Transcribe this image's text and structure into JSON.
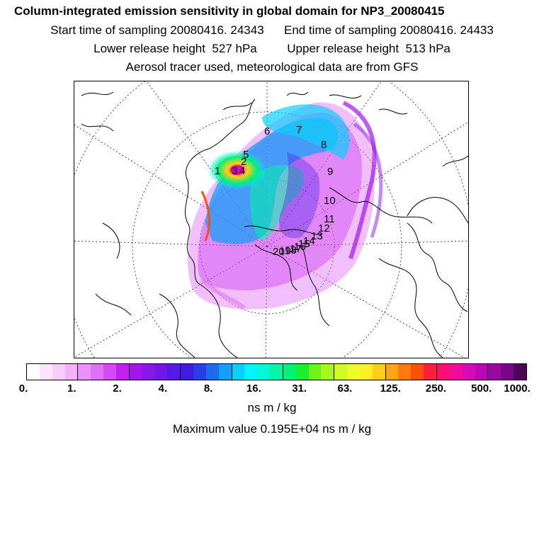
{
  "header": {
    "title": "Column-integrated emission sensitivity in global domain for NP3_20080415",
    "line2": "Start time of sampling 20080416. 24343      End time of sampling 20080416. 24433",
    "line3": "Lower release height  527 hPa         Upper release height  513 hPa",
    "line4": "Aerosol tracer used, meteorological data are from GFS"
  },
  "map": {
    "projection": "polar stereographic (north)",
    "track_labels": [
      "1",
      "2",
      "3",
      "4",
      "5",
      "6",
      "7",
      "8",
      "9",
      "10",
      "11",
      "12",
      "13",
      "14",
      "15",
      "16",
      "17",
      "18",
      "19",
      "20"
    ]
  },
  "colorbar": {
    "colors": [
      "#ffffff",
      "#fde6fe",
      "#f9ccfd",
      "#f3b0fb",
      "#eb92fa",
      "#e070f8",
      "#d24bf5",
      "#c21ff0",
      "#a215ec",
      "#8a17ea",
      "#7118e9",
      "#5818e6",
      "#3f19e4",
      "#2a3ee6",
      "#1d6cf0",
      "#14a0f7",
      "#0ad0fb",
      "#00f4fb",
      "#00f8d7",
      "#00f6a8",
      "#00f276",
      "#19ef2f",
      "#6df317",
      "#a6f71c",
      "#d0fa24",
      "#f0fc2a",
      "#fff027",
      "#ffcc1c",
      "#ffa511",
      "#ff7a0c",
      "#ff4e0a",
      "#ff1e3a",
      "#ff0d73",
      "#f00c9c",
      "#d80ab3",
      "#bb08b6",
      "#9a07a2",
      "#760687",
      "#4d0456"
    ],
    "tick_labels": [
      "0.",
      "1.",
      "2.",
      "4.",
      "8.",
      "16.",
      "31.",
      "63.",
      "125.",
      "250.",
      "500.",
      "1000."
    ],
    "unit": "ns m / kg"
  },
  "footer": {
    "max_value": "Maximum value  0.195E+04 ns m / kg"
  }
}
